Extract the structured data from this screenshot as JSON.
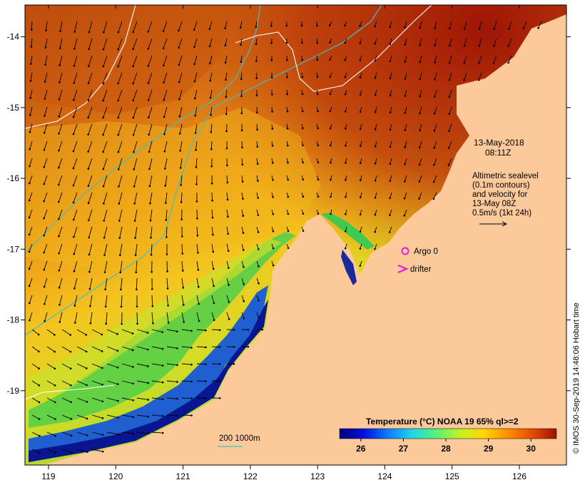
{
  "map": {
    "lon_range": [
      118.65,
      126.7
    ],
    "lat_range": [
      -20.05,
      -13.55
    ],
    "lon_ticks": [
      "119",
      "120",
      "121",
      "122",
      "123",
      "124",
      "125",
      "126"
    ],
    "lat_ticks": [
      "-14",
      "-15",
      "-16",
      "-17",
      "-18",
      "-19"
    ],
    "colors": {
      "land": "#fbc99a",
      "ocean_hot": "#b43a0a",
      "ocean_warm": "#e07c12",
      "ocean_mid": "#f3c21c",
      "ocean_cool": "#c8e02a",
      "ocean_green": "#3fc94e",
      "ocean_cold": "#1f5fd0",
      "ocean_coldest": "#0a0f86",
      "isobath": "#3fc0c8",
      "sealevel_contour": "#ffffff",
      "vector": "#000000"
    }
  },
  "annotations": {
    "date": "13-May-2018",
    "time": "08:11Z",
    "altimetry_lines": [
      "Altimetric sealevel",
      "(0.1m contours)",
      "and velocity for",
      "13-May 08Z",
      "0.5m/s (1kt 24h)"
    ],
    "argo_label": "Argo 0",
    "drifter_label": "drifter",
    "isobath_legend": "200  1000m"
  },
  "colorbar": {
    "title": "Temperature (°C) NOAA 19 65% ql>=2",
    "range": [
      25.5,
      30.6
    ],
    "ticks": [
      "26",
      "27",
      "28",
      "29",
      "30"
    ],
    "stops": [
      "#00007f",
      "#0010d8",
      "#0a7cff",
      "#1ed6e8",
      "#56f27a",
      "#c4f224",
      "#ffd500",
      "#ff8c00",
      "#e84a00",
      "#9c1500"
    ]
  },
  "credit": "© IMOS 30-Sep-2019 14:48:06 Hobart time"
}
